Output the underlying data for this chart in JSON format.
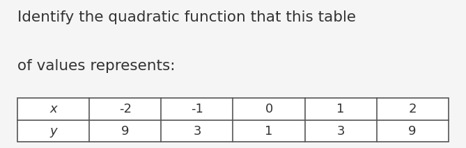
{
  "title_line1": "Identify the quadratic function that this table",
  "title_line2": "of values represents:",
  "background_color": "#f5f5f5",
  "table_background": "#ffffff",
  "table_border_color": "#555555",
  "x_label": "x",
  "y_label": "y",
  "x_values": [
    "-2",
    "-1",
    "0",
    "1",
    "2"
  ],
  "y_values": [
    "9",
    "3",
    "1",
    "3",
    "9"
  ],
  "title_fontsize": 15.5,
  "title_color": "#333333",
  "table_fontsize": 13
}
